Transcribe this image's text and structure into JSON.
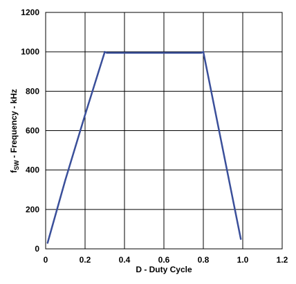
{
  "chart_data": {
    "type": "line",
    "xlabel": "D - Duty Cycle",
    "ylabel": {
      "prefix": "f",
      "subscript": "SW",
      "suffix": " - Frequency - kHz"
    },
    "xlim": [
      0,
      1.2
    ],
    "ylim": [
      0,
      1200
    ],
    "xticks": [
      0,
      0.2,
      0.4,
      0.6,
      0.8,
      1.0,
      1.2
    ],
    "xtick_labels": [
      "0",
      "0.2",
      "0.4",
      "0.6",
      "0.8",
      "1.0",
      "1.2"
    ],
    "yticks": [
      0,
      200,
      400,
      600,
      800,
      1000,
      1200
    ],
    "ytick_labels": [
      "0",
      "200",
      "400",
      "600",
      "800",
      "1000",
      "1200"
    ],
    "grid": true,
    "line_color": "#3a4f9a",
    "series": [
      {
        "x": [
          0.01,
          0.1,
          0.2,
          0.3,
          0.31,
          0.5,
          0.79,
          0.8,
          0.9,
          0.99
        ],
        "y": [
          30,
          350,
          680,
          1000,
          995,
          995,
          995,
          1000,
          500,
          50
        ]
      }
    ]
  }
}
